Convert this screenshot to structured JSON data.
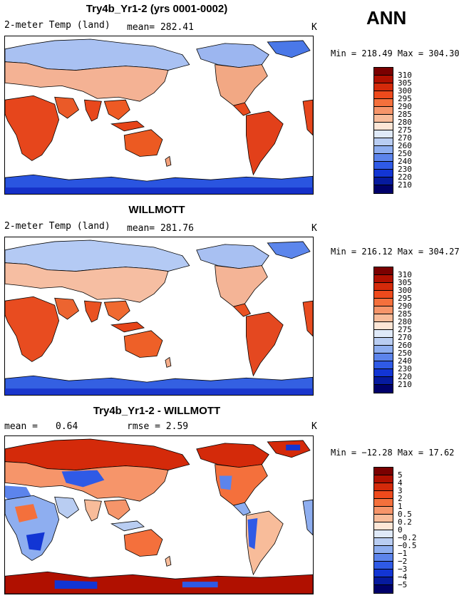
{
  "season": "ANN",
  "panels": [
    {
      "title": "Try4b_Yr1-2 (yrs 0001-0002)",
      "field_label": "2-meter Temp (land)",
      "stat1": "mean= 282.41",
      "stat2": "",
      "units": "K",
      "minmax": "Min = 218.49 Max = 304.30",
      "colorbar": {
        "labels": [
          "310",
          "305",
          "300",
          "295",
          "290",
          "285",
          "280",
          "275",
          "270",
          "260",
          "250",
          "240",
          "230",
          "220",
          "210"
        ],
        "colors": [
          "#7a0000",
          "#b01000",
          "#d42a0a",
          "#ee4a1c",
          "#f4703c",
          "#f6956a",
          "#f8bc9a",
          "#fde6d6",
          "#dfe9f8",
          "#b9cdf2",
          "#8eaef0",
          "#5c84ec",
          "#2f5ae6",
          "#1235d4",
          "#061a9e",
          "#00006a"
        ]
      }
    },
    {
      "title": "WILLMOTT",
      "field_label": "2-meter Temp (land)",
      "stat1": "mean= 281.76",
      "stat2": "",
      "units": "K",
      "minmax": "Min = 216.12 Max = 304.27",
      "colorbar": {
        "labels": [
          "310",
          "305",
          "300",
          "295",
          "290",
          "285",
          "280",
          "275",
          "270",
          "260",
          "250",
          "240",
          "230",
          "220",
          "210"
        ],
        "colors": [
          "#7a0000",
          "#b01000",
          "#d42a0a",
          "#ee4a1c",
          "#f4703c",
          "#f6956a",
          "#f8bc9a",
          "#fde6d6",
          "#dfe9f8",
          "#b9cdf2",
          "#8eaef0",
          "#5c84ec",
          "#2f5ae6",
          "#1235d4",
          "#061a9e",
          "#00006a"
        ]
      }
    },
    {
      "title": "Try4b_Yr1-2 - WILLMOTT",
      "field_label": "mean =",
      "stat1": "0.64",
      "stat2": "rmse =    2.59",
      "units": "K",
      "minmax": "Min = −12.28 Max =  17.62",
      "colorbar": {
        "labels": [
          "5",
          "4",
          "3",
          "2",
          "1",
          "0.5",
          "0.2",
          "0",
          "−0.2",
          "−0.5",
          "−1",
          "−2",
          "−3",
          "−4",
          "−5"
        ],
        "colors": [
          "#7a0000",
          "#b01000",
          "#d42a0a",
          "#ee4a1c",
          "#f4703c",
          "#f6956a",
          "#f8bc9a",
          "#fde6d6",
          "#dfe9f8",
          "#b9cdf2",
          "#8eaef0",
          "#5c84ec",
          "#2f5ae6",
          "#1235d4",
          "#061a9e",
          "#00006a"
        ]
      }
    }
  ]
}
